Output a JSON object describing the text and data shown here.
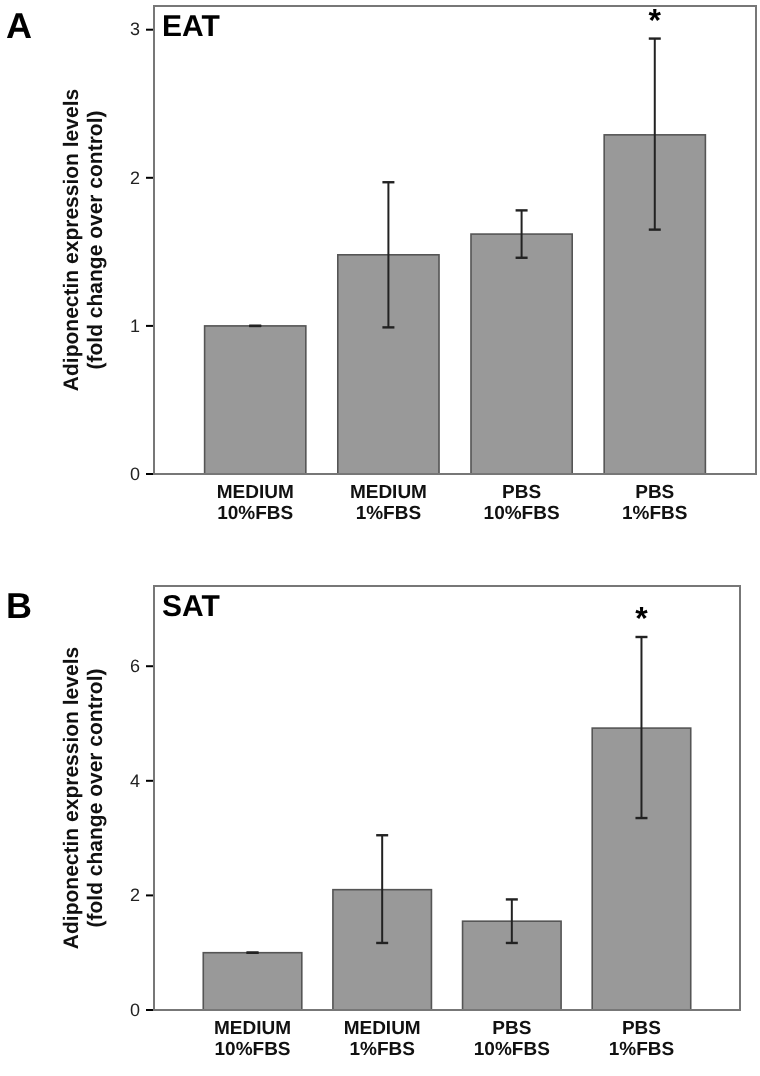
{
  "chart_data": [
    {
      "type": "bar",
      "title": "A",
      "subtitle": "EAT",
      "ylabel": "Adiponectin expression levels\n(fold change over control)",
      "categories": [
        "MEDIUM\n10%FBS",
        "MEDIUM\n1%FBS",
        "PBS\n10%FBS",
        "PBS\n1%FBS"
      ],
      "values": [
        1.0,
        1.48,
        1.62,
        2.29
      ],
      "errors": [
        0,
        [
          0.99,
          1.97
        ],
        [
          1.46,
          1.78
        ],
        [
          1.65,
          2.94
        ]
      ],
      "color": "#999999",
      "ylim": [
        0,
        3.16
      ],
      "yticks": [
        0,
        1,
        2,
        3
      ],
      "grid": false,
      "annotations": [
        "*"
      ]
    },
    {
      "type": "bar",
      "title": "B",
      "subtitle": "SAT",
      "ylabel": "Adiponectin expression levels\n(fold change over control)",
      "categories": [
        "MEDIUM\n10%FBS",
        "MEDIUM\n1%FBS",
        "PBS\n10%FBS",
        "PBS\n1%FBS"
      ],
      "values": [
        1.0,
        2.1,
        1.55,
        4.92
      ],
      "errors": [
        0,
        [
          1.17,
          3.05
        ],
        [
          1.17,
          1.93
        ],
        [
          3.35,
          6.51
        ]
      ],
      "color": "#999999",
      "ylim": [
        0,
        7.4
      ],
      "yticks": [
        0,
        2,
        4,
        6
      ],
      "grid": false,
      "annotations": [
        "*"
      ]
    }
  ]
}
